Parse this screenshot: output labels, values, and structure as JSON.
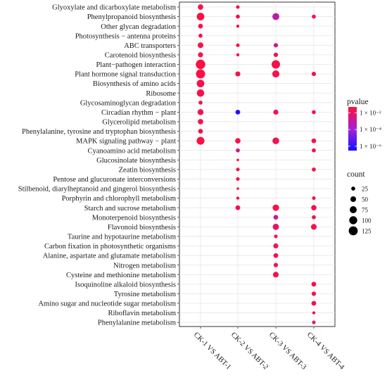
{
  "chart_data": {
    "type": "scatter",
    "subtype": "bubble",
    "title": "",
    "xlabel": "",
    "ylabel": "",
    "grid": true,
    "legend_placement": "right",
    "x_categories": [
      "CK-1 VS ABT-1",
      "CK-2 VS ABT-2",
      "CK-3 VS ABT-3",
      "CK-4 VS ABT-4"
    ],
    "y_categories": [
      "Glyoxylate and dicarboxylate metabolism",
      "Phenylpropanoid biosynthesis",
      "Other glycan degradation",
      "Photosynthesis − antenna proteins",
      "ABC transporters",
      "Carotenoid biosynthesis",
      "Plant−pathogen interaction",
      "Plant hormone signal transduction",
      "Biosynthesis of amino acids",
      "Ribosome",
      "Glycosaminoglycan degradation",
      "Circadian rhythm − plant",
      "Glycerolipid metabolism",
      "Phenylalanine, tyrosine and tryptophan biosynthesis",
      "MAPK signaling pathway − plant",
      "Cyanoamino acid metabolism",
      "Glucosinolate biosynthesis",
      "Zeatin biosynthesis",
      "Pentose and glucuronate interconversions",
      "Stilbenoid, diarylheptanoid and gingerol biosynthesis",
      "Porphyrin and chlorophyll metabolism",
      "Starch and sucrose metabolism",
      "Monoterpenoid biosynthesis",
      "Flavonoid biosynthesis",
      "Taurine and hypotaurine metabolism",
      "Carbon fixation in photosynthetic organisms",
      "Alanine, aspartate and glutamate metabolism",
      "Nitrogen metabolism",
      "Cysteine and methionine metabolism",
      "Isoquinoline alkaloid biosynthesis",
      "Tyrosine metabolism",
      "Amino sugar and nucleotide sugar metabolism",
      "Riboflavin metabolism",
      "Phenylalanine metabolism"
    ],
    "points": [
      {
        "x": "CK-1 VS ABT-1",
        "y": "Glyoxylate and dicarboxylate metabolism",
        "count": 45,
        "pvalue": 0.03
      },
      {
        "x": "CK-1 VS ABT-1",
        "y": "Phenylpropanoid biosynthesis",
        "count": 90,
        "pvalue": 0.04
      },
      {
        "x": "CK-1 VS ABT-1",
        "y": "Other glycan degradation",
        "count": 35,
        "pvalue": 0.03
      },
      {
        "x": "CK-1 VS ABT-1",
        "y": "Photosynthesis − antenna proteins",
        "count": 25,
        "pvalue": 0.03
      },
      {
        "x": "CK-1 VS ABT-1",
        "y": "ABC transporters",
        "count": 50,
        "pvalue": 0.03
      },
      {
        "x": "CK-1 VS ABT-1",
        "y": "Carotenoid biosynthesis",
        "count": 40,
        "pvalue": 0.03
      },
      {
        "x": "CK-1 VS ABT-1",
        "y": "Plant−pathogen interaction",
        "count": 140,
        "pvalue": 0.04
      },
      {
        "x": "CK-1 VS ABT-1",
        "y": "Plant hormone signal transduction",
        "count": 130,
        "pvalue": 0.04
      },
      {
        "x": "CK-1 VS ABT-1",
        "y": "Biosynthesis of amino acids",
        "count": 90,
        "pvalue": 0.03
      },
      {
        "x": "CK-1 VS ABT-1",
        "y": "Ribosome",
        "count": 85,
        "pvalue": 0.03
      },
      {
        "x": "CK-1 VS ABT-1",
        "y": "Glycosaminoglycan degradation",
        "count": 25,
        "pvalue": 0.03
      },
      {
        "x": "CK-1 VS ABT-1",
        "y": "Circadian rhythm − plant",
        "count": 55,
        "pvalue": 0.03
      },
      {
        "x": "CK-1 VS ABT-1",
        "y": "Glycerolipid metabolism",
        "count": 45,
        "pvalue": 0.03
      },
      {
        "x": "CK-1 VS ABT-1",
        "y": "Phenylalanine, tyrosine and tryptophan biosynthesis",
        "count": 35,
        "pvalue": 0.03
      },
      {
        "x": "CK-1 VS ABT-1",
        "y": "MAPK signaling pathway − plant",
        "count": 95,
        "pvalue": 0.04
      },
      {
        "x": "CK-2 VS ABT-2",
        "y": "Glyoxylate and dicarboxylate metabolism",
        "count": 20,
        "pvalue": 0.03
      },
      {
        "x": "CK-2 VS ABT-2",
        "y": "Phenylpropanoid biosynthesis",
        "count": 25,
        "pvalue": 0.03
      },
      {
        "x": "CK-2 VS ABT-2",
        "y": "Other glycan degradation",
        "count": 15,
        "pvalue": 0.03
      },
      {
        "x": "CK-2 VS ABT-2",
        "y": "ABC transporters",
        "count": 20,
        "pvalue": 0.03
      },
      {
        "x": "CK-2 VS ABT-2",
        "y": "Carotenoid biosynthesis",
        "count": 15,
        "pvalue": 0.03
      },
      {
        "x": "CK-2 VS ABT-2",
        "y": "Plant hormone signal transduction",
        "count": 40,
        "pvalue": 0.03
      },
      {
        "x": "CK-2 VS ABT-2",
        "y": "Circadian rhythm − plant",
        "count": 35,
        "pvalue": 6e-07
      },
      {
        "x": "CK-2 VS ABT-2",
        "y": "MAPK signaling pathway − plant",
        "count": 45,
        "pvalue": 0.03
      },
      {
        "x": "CK-2 VS ABT-2",
        "y": "Cyanoamino acid metabolism",
        "count": 25,
        "pvalue": 0.002
      },
      {
        "x": "CK-2 VS ABT-2",
        "y": "Glucosinolate biosynthesis",
        "count": 10,
        "pvalue": 0.03
      },
      {
        "x": "CK-2 VS ABT-2",
        "y": "Zeatin biosynthesis",
        "count": 20,
        "pvalue": 0.03
      },
      {
        "x": "CK-2 VS ABT-2",
        "y": "Pentose and glucuronate interconversions",
        "count": 20,
        "pvalue": 0.03
      },
      {
        "x": "CK-2 VS ABT-2",
        "y": "Stilbenoid, diarylheptanoid and gingerol biosynthesis",
        "count": 10,
        "pvalue": 0.03
      },
      {
        "x": "CK-2 VS ABT-2",
        "y": "Porphyrin and chlorophyll metabolism",
        "count": 15,
        "pvalue": 0.03
      },
      {
        "x": "CK-2 VS ABT-2",
        "y": "Starch and sucrose metabolism",
        "count": 35,
        "pvalue": 0.03
      },
      {
        "x": "CK-3 VS ABT-3",
        "y": "Phenylpropanoid biosynthesis",
        "count": 75,
        "pvalue": 0.0008
      },
      {
        "x": "CK-3 VS ABT-3",
        "y": "ABC transporters",
        "count": 30,
        "pvalue": 0.002
      },
      {
        "x": "CK-3 VS ABT-3",
        "y": "Carotenoid biosynthesis",
        "count": 30,
        "pvalue": 0.03
      },
      {
        "x": "CK-3 VS ABT-3",
        "y": "Plant−pathogen interaction",
        "count": 110,
        "pvalue": 0.03
      },
      {
        "x": "CK-3 VS ABT-3",
        "y": "Plant hormone signal transduction",
        "count": 80,
        "pvalue": 0.03
      },
      {
        "x": "CK-3 VS ABT-3",
        "y": "Circadian rhythm − plant",
        "count": 40,
        "pvalue": 0.03
      },
      {
        "x": "CK-3 VS ABT-3",
        "y": "MAPK signaling pathway − plant",
        "count": 70,
        "pvalue": 0.03
      },
      {
        "x": "CK-3 VS ABT-3",
        "y": "Starch and sucrose metabolism",
        "count": 65,
        "pvalue": 0.03
      },
      {
        "x": "CK-3 VS ABT-3",
        "y": "Monoterpenoid biosynthesis",
        "count": 35,
        "pvalue": 0.001
      },
      {
        "x": "CK-3 VS ABT-3",
        "y": "Flavonoid biosynthesis",
        "count": 60,
        "pvalue": 0.01
      },
      {
        "x": "CK-3 VS ABT-3",
        "y": "Taurine and hypotaurine metabolism",
        "count": 20,
        "pvalue": 0.03
      },
      {
        "x": "CK-3 VS ABT-3",
        "y": "Carbon fixation in photosynthetic organisms",
        "count": 40,
        "pvalue": 0.03
      },
      {
        "x": "CK-3 VS ABT-3",
        "y": "Alanine, aspartate and glutamate metabolism",
        "count": 35,
        "pvalue": 0.03
      },
      {
        "x": "CK-3 VS ABT-3",
        "y": "Nitrogen metabolism",
        "count": 30,
        "pvalue": 0.03
      },
      {
        "x": "CK-3 VS ABT-3",
        "y": "Cysteine and methionine metabolism",
        "count": 50,
        "pvalue": 0.03
      },
      {
        "x": "CK-4 VS ABT-4",
        "y": "Phenylpropanoid biosynthesis",
        "count": 25,
        "pvalue": 0.03
      },
      {
        "x": "CK-4 VS ABT-4",
        "y": "Plant hormone signal transduction",
        "count": 30,
        "pvalue": 0.03
      },
      {
        "x": "CK-4 VS ABT-4",
        "y": "Circadian rhythm − plant",
        "count": 25,
        "pvalue": 0.03
      },
      {
        "x": "CK-4 VS ABT-4",
        "y": "MAPK signaling pathway − plant",
        "count": 35,
        "pvalue": 0.03
      },
      {
        "x": "CK-4 VS ABT-4",
        "y": "Cyanoamino acid metabolism",
        "count": 25,
        "pvalue": 0.03
      },
      {
        "x": "CK-4 VS ABT-4",
        "y": "Zeatin biosynthesis",
        "count": 25,
        "pvalue": 0.03
      },
      {
        "x": "CK-4 VS ABT-4",
        "y": "Porphyrin and chlorophyll metabolism",
        "count": 20,
        "pvalue": 0.03
      },
      {
        "x": "CK-4 VS ABT-4",
        "y": "Starch and sucrose metabolism",
        "count": 45,
        "pvalue": 0.03
      },
      {
        "x": "CK-4 VS ABT-4",
        "y": "Monoterpenoid biosynthesis",
        "count": 25,
        "pvalue": 0.03
      },
      {
        "x": "CK-4 VS ABT-4",
        "y": "Flavonoid biosynthesis",
        "count": 50,
        "pvalue": 0.03
      },
      {
        "x": "CK-4 VS ABT-4",
        "y": "Isoquinoline alkaloid biosynthesis",
        "count": 35,
        "pvalue": 0.03
      },
      {
        "x": "CK-4 VS ABT-4",
        "y": "Tyrosine metabolism",
        "count": 30,
        "pvalue": 0.03
      },
      {
        "x": "CK-4 VS ABT-4",
        "y": "Amino sugar and nucleotide sugar metabolism",
        "count": 35,
        "pvalue": 0.03
      },
      {
        "x": "CK-4 VS ABT-4",
        "y": "Riboflavin metabolism",
        "count": 15,
        "pvalue": 0.03
      },
      {
        "x": "CK-4 VS ABT-4",
        "y": "Phenylalanine metabolism",
        "count": 20,
        "pvalue": 0.03
      }
    ],
    "color_legend": {
      "title": "pvalue",
      "scale": "log",
      "ticks": [
        {
          "value": 0.01,
          "label": "1 × 10⁻²"
        },
        {
          "value": 0.0001,
          "label": "1 × 10⁻⁴"
        },
        {
          "value": 1e-06,
          "label": "1 × 10⁻⁶"
        }
      ],
      "range": [
        3e-07,
        0.05
      ],
      "low_color": "#1010ff",
      "mid_color": "#9922dd",
      "high_color": "#ff1040"
    },
    "size_legend": {
      "title": "count",
      "values": [
        25,
        50,
        75,
        100,
        125
      ],
      "range": [
        5,
        145
      ]
    }
  }
}
